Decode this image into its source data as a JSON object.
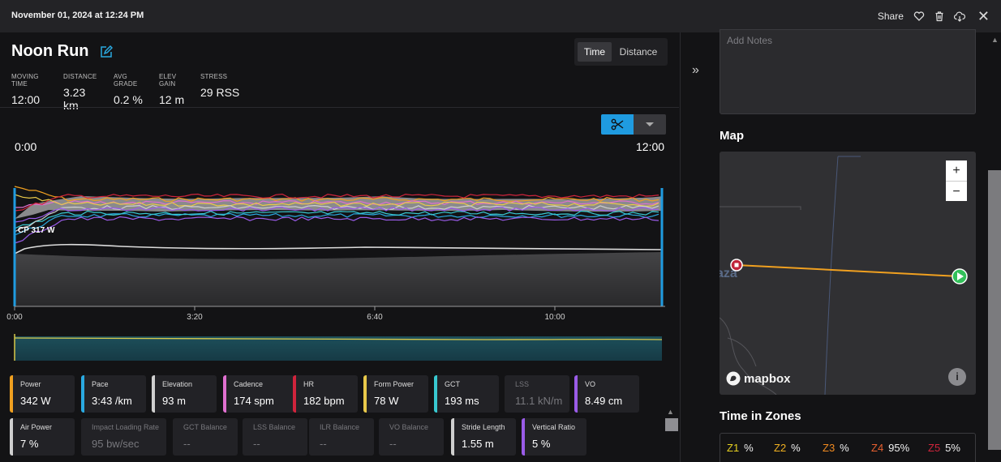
{
  "header": {
    "date": "November 01, 2024 at 12:24 PM",
    "share_label": "Share",
    "icons": [
      "heart-icon",
      "trash-icon",
      "download-icon",
      "close-icon"
    ]
  },
  "activity": {
    "title": "Noon Run",
    "view_toggle": {
      "time_label": "Time",
      "distance_label": "Distance",
      "selected": "Time"
    },
    "stats": [
      {
        "label": "MOVING TIME",
        "value": "12:00"
      },
      {
        "label": "DISTANCE",
        "value": "3.23 km"
      },
      {
        "label": "AVG GRADE",
        "value": "0.2 %"
      },
      {
        "label": "ELEV GAIN",
        "value": "12 m"
      },
      {
        "label": "STRESS",
        "value": "29 RSS"
      }
    ]
  },
  "chart": {
    "range_start": "0:00",
    "range_end": "12:00",
    "cp_label": "CP 317 W",
    "x_ticks": [
      "0:00",
      "3:20",
      "6:40",
      "10:00"
    ],
    "accent": "#1f9be0"
  },
  "metrics": [
    {
      "label": "Power",
      "value": "342 W",
      "color": "#f0a020",
      "active": true
    },
    {
      "label": "Pace",
      "value": "3:43 /km",
      "color": "#2aa9e0",
      "active": true
    },
    {
      "label": "Elevation",
      "value": "93 m",
      "color": "#cfcfcf",
      "active": true
    },
    {
      "label": "Cadence",
      "value": "174 spm",
      "color": "#e070d0",
      "active": true
    },
    {
      "label": "HR",
      "value": "182 bpm",
      "color": "#d0243c",
      "active": true
    },
    {
      "label": "Form Power",
      "value": "78 W",
      "color": "#e8c84a",
      "active": true
    },
    {
      "label": "GCT",
      "value": "193 ms",
      "color": "#38c8d0",
      "active": true
    },
    {
      "label": "LSS",
      "value": "11.1 kN/m",
      "color": "#222226",
      "active": false
    },
    {
      "label": "VO",
      "value": "8.49 cm",
      "color": "#9a5ce8",
      "active": true
    },
    {
      "label": "Air Power",
      "value": "7 %",
      "color": "#cfcfcf",
      "active": true
    },
    {
      "label": "Impact Loading Rate",
      "value": "95 bw/sec",
      "color": "#222226",
      "active": false
    },
    {
      "label": "GCT Balance",
      "value": "--",
      "color": "#222226",
      "active": false
    },
    {
      "label": "LSS Balance",
      "value": "--",
      "color": "#222226",
      "active": false
    },
    {
      "label": "ILR Balance",
      "value": "--",
      "color": "#222226",
      "active": false
    },
    {
      "label": "VO Balance",
      "value": "--",
      "color": "#222226",
      "active": false
    },
    {
      "label": "Stride Length",
      "value": "1.55 m",
      "color": "#cfcfcf",
      "active": true
    },
    {
      "label": "Vertical Ratio",
      "value": "5 %",
      "color": "#9a5ce8",
      "active": true
    }
  ],
  "sidebar": {
    "notes_placeholder": "Add Notes",
    "map_title": "Map",
    "map_partial_label": "aza",
    "mapbox_label": "mapbox",
    "zoom_in": "+",
    "zoom_out": "−",
    "info_label": "i",
    "zones_title": "Time in Zones",
    "zones": [
      {
        "key": "Z1",
        "value": "%",
        "color": "#e6d020"
      },
      {
        "key": "Z2",
        "value": "%",
        "color": "#f0b020"
      },
      {
        "key": "Z3",
        "value": "%",
        "color": "#f08a20"
      },
      {
        "key": "Z4",
        "value": "95%",
        "color": "#e86030"
      },
      {
        "key": "Z5",
        "value": "5%",
        "color": "#d0243c"
      }
    ]
  }
}
